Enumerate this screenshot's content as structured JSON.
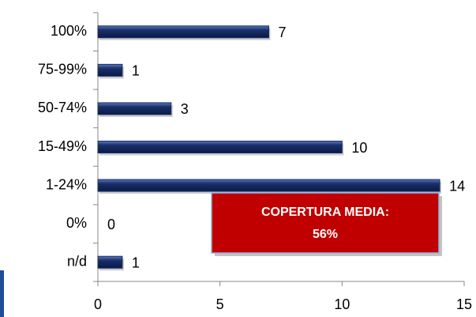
{
  "chart_data": {
    "type": "barh",
    "categories": [
      "100%",
      "75-99%",
      "50-74%",
      "15-49%",
      "1-24%",
      "0%",
      "n/d"
    ],
    "values": [
      7,
      1,
      3,
      10,
      14,
      0,
      1
    ],
    "color": "#1a2f6b",
    "xlim": [
      0,
      15
    ],
    "xticks": [
      0,
      5,
      10,
      15
    ],
    "annotation": [
      "COPERTURA MEDIA:",
      "56%"
    ],
    "annotation_color": "#c00000"
  }
}
